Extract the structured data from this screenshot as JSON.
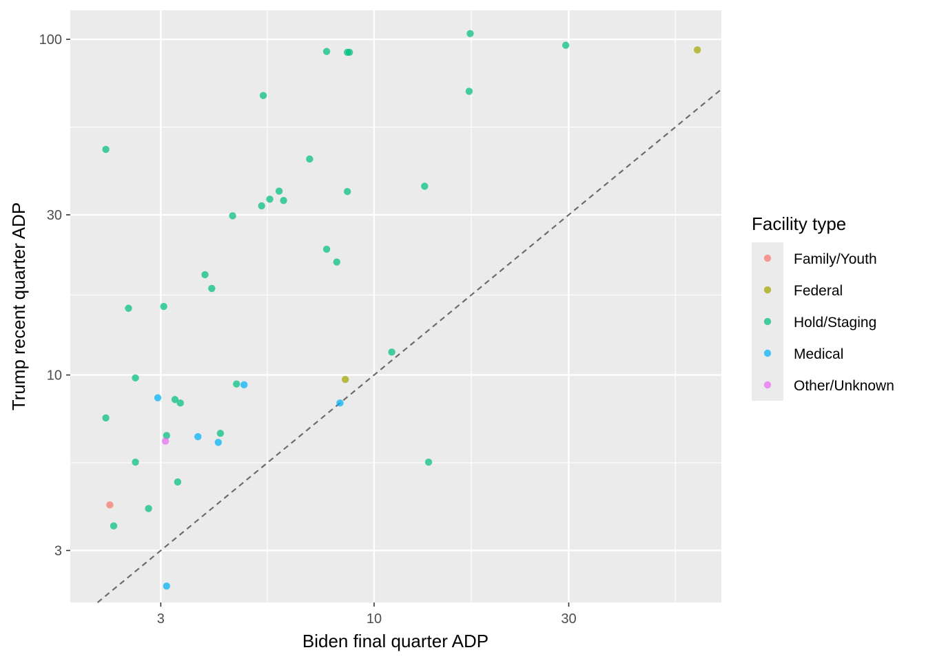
{
  "chart_data": {
    "type": "scatter",
    "xlabel": "Biden final quarter ADP",
    "ylabel": "Trump recent quarter ADP",
    "x_scale": "log10",
    "y_scale": "log10",
    "xlim": [
      1.8,
      71
    ],
    "ylim": [
      2.1,
      122
    ],
    "x_ticks": [
      3,
      10,
      30
    ],
    "x_tick_labels": [
      "3",
      "10",
      "30"
    ],
    "x_minor_ticks": [
      1.732,
      5.477,
      17.32,
      54.77
    ],
    "y_ticks": [
      3,
      10,
      30,
      100
    ],
    "y_tick_labels": [
      "3",
      "10",
      "30",
      "100"
    ],
    "y_minor_ticks": [
      5.477,
      17.32,
      54.77
    ],
    "reference_line": {
      "type": "identity",
      "label": "y = x",
      "style": "dashed",
      "color": "#6b6b6b"
    },
    "legend": {
      "title": "Facility type",
      "position": "right",
      "entries": [
        {
          "name": "Family/Youth",
          "color": "#F8766D"
        },
        {
          "name": "Federal",
          "color": "#A3A500"
        },
        {
          "name": "Hold/Staging",
          "color": "#00BF7D"
        },
        {
          "name": "Medical",
          "color": "#00B0F6"
        },
        {
          "name": "Other/Unknown",
          "color": "#E76BF3"
        }
      ]
    },
    "series": [
      {
        "name": "Family/Youth",
        "points": [
          [
            2.25,
            4.1
          ]
        ]
      },
      {
        "name": "Federal",
        "points": [
          [
            62,
            93
          ],
          [
            8.5,
            9.7
          ]
        ]
      },
      {
        "name": "Hold/Staging",
        "points": [
          [
            17.2,
            104
          ],
          [
            29.5,
            96
          ],
          [
            7.65,
            92
          ],
          [
            8.6,
            91.5
          ],
          [
            8.7,
            91.5
          ],
          [
            17.1,
            70
          ],
          [
            5.35,
            68
          ],
          [
            2.2,
            47
          ],
          [
            6.95,
            44
          ],
          [
            13.3,
            36.5
          ],
          [
            8.6,
            35.2
          ],
          [
            5.85,
            35.3
          ],
          [
            5.55,
            33.4
          ],
          [
            6.0,
            33.1
          ],
          [
            5.3,
            31.9
          ],
          [
            4.5,
            29.8
          ],
          [
            7.65,
            23.7
          ],
          [
            8.1,
            21.7
          ],
          [
            3.85,
            19.9
          ],
          [
            4.0,
            18.1
          ],
          [
            2.5,
            15.8
          ],
          [
            3.05,
            16.0
          ],
          [
            11.05,
            11.7
          ],
          [
            2.6,
            9.8
          ],
          [
            4.6,
            9.4
          ],
          [
            3.25,
            8.45
          ],
          [
            3.35,
            8.25
          ],
          [
            2.2,
            7.45
          ],
          [
            4.2,
            6.7
          ],
          [
            3.1,
            6.6
          ],
          [
            13.6,
            5.5
          ],
          [
            2.6,
            5.5
          ],
          [
            3.3,
            4.8
          ],
          [
            2.8,
            4.0
          ],
          [
            2.3,
            3.55
          ]
        ]
      },
      {
        "name": "Medical",
        "points": [
          [
            4.8,
            9.35
          ],
          [
            2.95,
            8.55
          ],
          [
            8.25,
            8.25
          ],
          [
            3.7,
            6.55
          ],
          [
            4.15,
            6.3
          ],
          [
            3.1,
            2.35
          ]
        ]
      },
      {
        "name": "Other/Unknown",
        "points": [
          [
            3.08,
            6.35
          ]
        ]
      }
    ]
  }
}
